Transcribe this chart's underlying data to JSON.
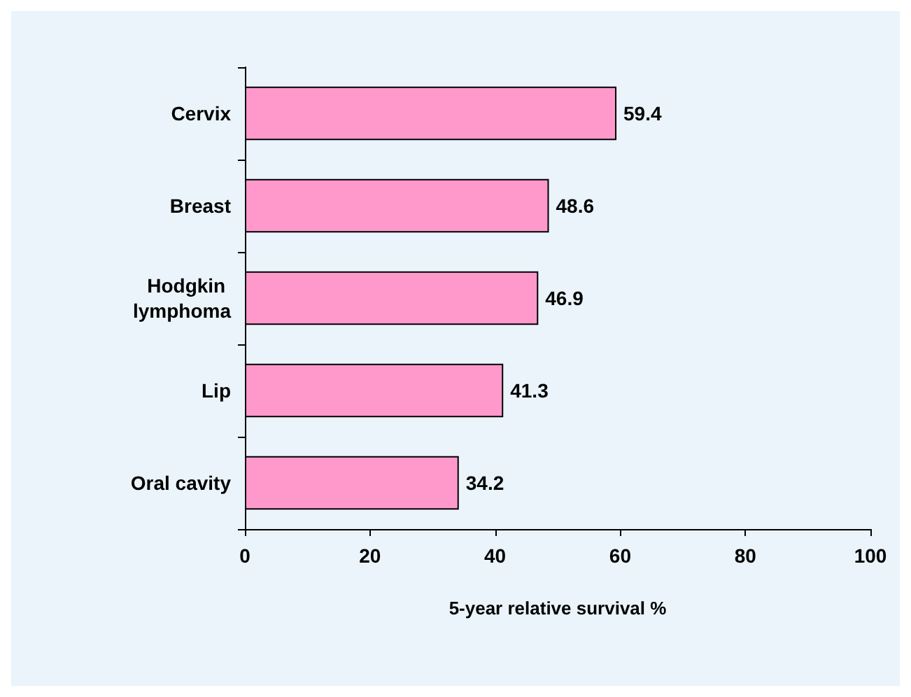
{
  "chart_data": {
    "type": "bar",
    "orientation": "horizontal",
    "categories": [
      "Cervix",
      "Breast",
      "Hodgkin lymphoma",
      "Lip",
      "Oral cavity"
    ],
    "values": [
      59.4,
      48.6,
      46.9,
      41.3,
      34.2
    ],
    "color": "#ff99cc",
    "xlabel": "5-year relative survival %",
    "xlim": [
      0,
      100
    ],
    "xticks": [
      0,
      20,
      40,
      60,
      80,
      100
    ],
    "data_labels": true,
    "grid": false
  }
}
